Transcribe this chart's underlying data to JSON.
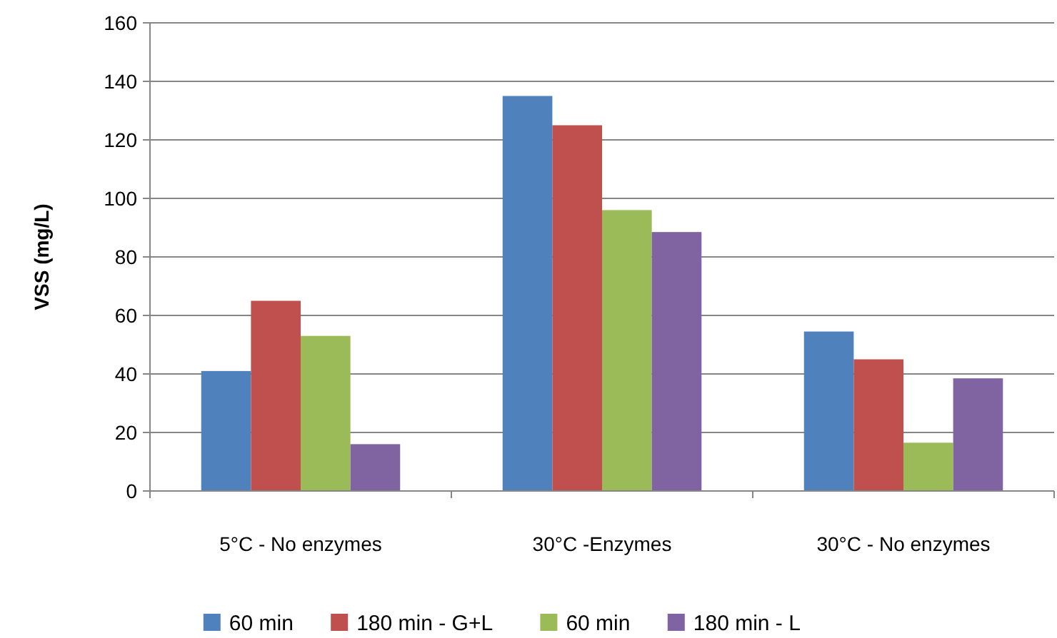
{
  "chart_data": {
    "type": "bar",
    "ylabel": "VSS (mg/L)",
    "categories": [
      "5°C - No enzymes",
      "30°C -Enzymes",
      "30°C - No enzymes"
    ],
    "series": [
      {
        "name": "60 min",
        "color": "#4f81bd",
        "values": [
          41,
          135,
          54.5
        ]
      },
      {
        "name": "180 min - G+L",
        "color": "#c0504d",
        "values": [
          65,
          125,
          45
        ]
      },
      {
        "name": "60 min",
        "color": "#9bbb59",
        "values": [
          53,
          96,
          16.5
        ]
      },
      {
        "name": "180 min - L",
        "color": "#8064a2",
        "values": [
          16,
          88.5,
          38.5
        ]
      }
    ],
    "ylim": [
      0,
      160
    ],
    "yticks": [
      0,
      20,
      40,
      60,
      80,
      100,
      120,
      140,
      160
    ],
    "grid": "y",
    "legend": "bottom"
  }
}
